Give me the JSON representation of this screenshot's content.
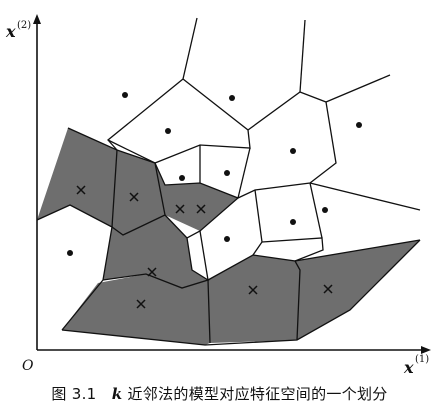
{
  "figure": {
    "x_axis_label": "x",
    "x_axis_superscript": "(1)",
    "y_axis_label": "x",
    "y_axis_superscript": "(2)",
    "origin_label": "O",
    "shaded_color": "#6e6e6e",
    "unshaded_color": "#ffffff",
    "edge_color": "#111111",
    "point_markers": {
      "x_class": "cross",
      "dot_class": "dot"
    }
  },
  "caption": {
    "number": "图 3.1",
    "k": "k",
    "text": "近邻法的模型对应特征空间的一个划分"
  }
}
